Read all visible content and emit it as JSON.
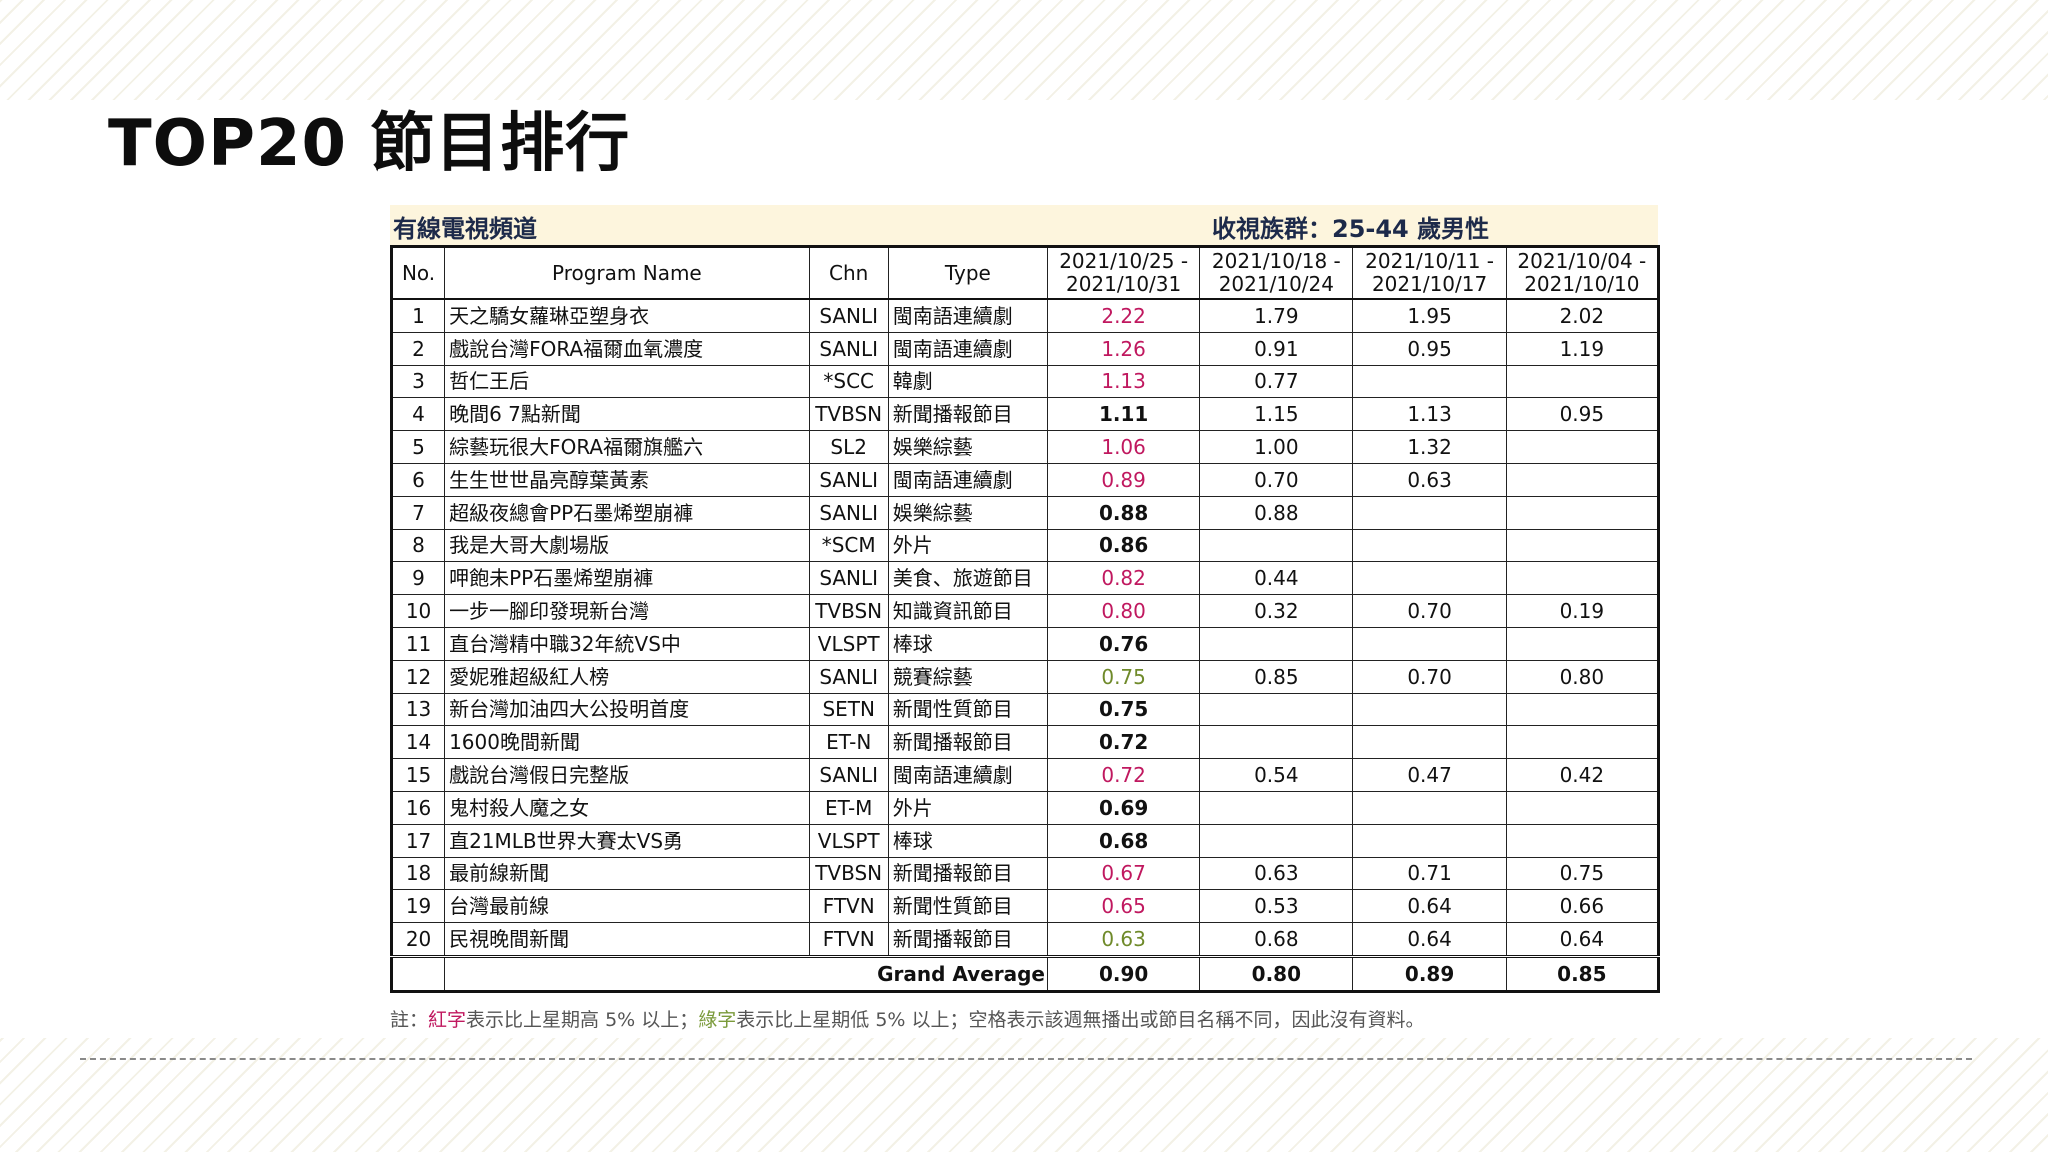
{
  "title": "TOP20 節目排行",
  "table_header": {
    "left": "有線電視頻道",
    "right": "收視族群：25-44 歲男性"
  },
  "columns": {
    "no": "No.",
    "name": "Program Name",
    "chn": "Chn",
    "type": "Type",
    "weeks": [
      [
        "2021/10/25 -",
        "2021/10/31"
      ],
      [
        "2021/10/18 -",
        "2021/10/24"
      ],
      [
        "2021/10/11 -",
        "2021/10/17"
      ],
      [
        "2021/10/04 -",
        "2021/10/10"
      ]
    ]
  },
  "colors": {
    "up": "#c0185f",
    "down": "#6f8a2a"
  },
  "rows": [
    {
      "no": "1",
      "name": "天之驕女蘿琳亞塑身衣",
      "chn": "SANLI",
      "type": "閩南語連續劇",
      "w1": "2.22",
      "trend": "up",
      "w2": "1.79",
      "w3": "1.95",
      "w4": "2.02"
    },
    {
      "no": "2",
      "name": "戲說台灣FORA福爾血氧濃度",
      "chn": "SANLI",
      "type": "閩南語連續劇",
      "w1": "1.26",
      "trend": "up",
      "w2": "0.91",
      "w3": "0.95",
      "w4": "1.19"
    },
    {
      "no": "3",
      "name": "哲仁王后",
      "chn": "*SCC",
      "type": "韓劇",
      "w1": "1.13",
      "trend": "up",
      "w2": "0.77",
      "w3": "",
      "w4": ""
    },
    {
      "no": "4",
      "name": "晚間6 7點新聞",
      "chn": "TVBSN",
      "type": "新聞播報節目",
      "w1": "1.11",
      "trend": "",
      "w2": "1.15",
      "w3": "1.13",
      "w4": "0.95"
    },
    {
      "no": "5",
      "name": "綜藝玩很大FORA福爾旗艦六",
      "chn": "SL2",
      "type": "娛樂綜藝",
      "w1": "1.06",
      "trend": "up",
      "w2": "1.00",
      "w3": "1.32",
      "w4": ""
    },
    {
      "no": "6",
      "name": "生生世世晶亮醇葉黃素",
      "chn": "SANLI",
      "type": "閩南語連續劇",
      "w1": "0.89",
      "trend": "up",
      "w2": "0.70",
      "w3": "0.63",
      "w4": ""
    },
    {
      "no": "7",
      "name": "超級夜總會PP石墨烯塑崩褲",
      "chn": "SANLI",
      "type": "娛樂綜藝",
      "w1": "0.88",
      "trend": "",
      "w2": "0.88",
      "w3": "",
      "w4": ""
    },
    {
      "no": "8",
      "name": "我是大哥大劇場版",
      "chn": "*SCM",
      "type": "外片",
      "w1": "0.86",
      "trend": "",
      "w2": "",
      "w3": "",
      "w4": ""
    },
    {
      "no": "9",
      "name": "呷飽未PP石墨烯塑崩褲",
      "chn": "SANLI",
      "type": "美食、旅遊節目",
      "w1": "0.82",
      "trend": "up",
      "w2": "0.44",
      "w3": "",
      "w4": ""
    },
    {
      "no": "10",
      "name": "一步一腳印發現新台灣",
      "chn": "TVBSN",
      "type": "知識資訊節目",
      "w1": "0.80",
      "trend": "up",
      "w2": "0.32",
      "w3": "0.70",
      "w4": "0.19"
    },
    {
      "no": "11",
      "name": "直台灣精中職32年統VS中",
      "chn": "VLSPT",
      "type": "棒球",
      "w1": "0.76",
      "trend": "",
      "w2": "",
      "w3": "",
      "w4": ""
    },
    {
      "no": "12",
      "name": "愛妮雅超級紅人榜",
      "chn": "SANLI",
      "type": "競賽綜藝",
      "w1": "0.75",
      "trend": "down",
      "w2": "0.85",
      "w3": "0.70",
      "w4": "0.80"
    },
    {
      "no": "13",
      "name": "新台灣加油四大公投明首度",
      "chn": "SETN",
      "type": "新聞性質節目",
      "w1": "0.75",
      "trend": "",
      "w2": "",
      "w3": "",
      "w4": ""
    },
    {
      "no": "14",
      "name": "1600晚間新聞",
      "chn": "ET-N",
      "type": "新聞播報節目",
      "w1": "0.72",
      "trend": "",
      "w2": "",
      "w3": "",
      "w4": ""
    },
    {
      "no": "15",
      "name": "戲說台灣假日完整版",
      "chn": "SANLI",
      "type": "閩南語連續劇",
      "w1": "0.72",
      "trend": "up",
      "w2": "0.54",
      "w3": "0.47",
      "w4": "0.42"
    },
    {
      "no": "16",
      "name": "鬼村殺人魔之女",
      "chn": "ET-M",
      "type": "外片",
      "w1": "0.69",
      "trend": "",
      "w2": "",
      "w3": "",
      "w4": ""
    },
    {
      "no": "17",
      "name": "直21MLB世界大賽太VS勇",
      "chn": "VLSPT",
      "type": "棒球",
      "w1": "0.68",
      "trend": "",
      "w2": "",
      "w3": "",
      "w4": ""
    },
    {
      "no": "18",
      "name": "最前線新聞",
      "chn": "TVBSN",
      "type": "新聞播報節目",
      "w1": "0.67",
      "trend": "up",
      "w2": "0.63",
      "w3": "0.71",
      "w4": "0.75"
    },
    {
      "no": "19",
      "name": "台灣最前線",
      "chn": "FTVN",
      "type": "新聞性質節目",
      "w1": "0.65",
      "trend": "up",
      "w2": "0.53",
      "w3": "0.64",
      "w4": "0.66"
    },
    {
      "no": "20",
      "name": "民視晚間新聞",
      "chn": "FTVN",
      "type": "新聞播報節目",
      "w1": "0.63",
      "trend": "down",
      "w2": "0.68",
      "w3": "0.64",
      "w4": "0.64"
    }
  ],
  "grand_average": {
    "label": "Grand Average",
    "values": [
      "0.90",
      "0.80",
      "0.89",
      "0.85"
    ]
  },
  "note": {
    "prefix": "註：",
    "red": "紅字",
    "part1": "表示比上星期高 5% 以上；",
    "green": "綠字",
    "part2": "表示比上星期低 5% 以上；空格表示該週無播出或節目名稱不同，因此沒有資料。"
  }
}
